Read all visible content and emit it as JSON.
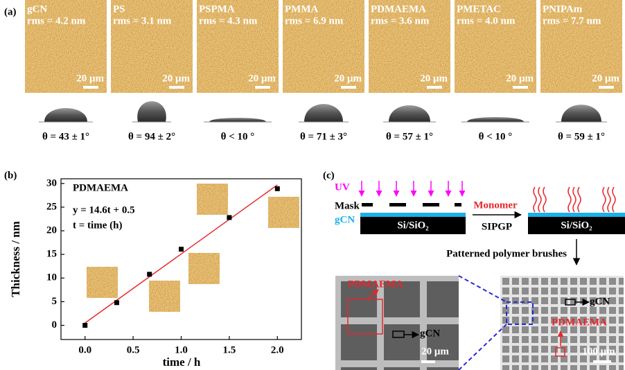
{
  "panel_labels": [
    "(a)",
    "(b)",
    "(c)"
  ],
  "panel_a": {
    "samples": [
      {
        "name": "gCN",
        "rms": "rms = 4.2 nm",
        "scale_bar": "20 μm",
        "contact_angle": "θ = 43 ± 1°"
      },
      {
        "name": "PS",
        "rms": "rms = 3.1 nm",
        "scale_bar": "20 μm",
        "contact_angle": "θ = 94 ± 2°"
      },
      {
        "name": "PSPMA",
        "rms": "rms = 4.3 nm",
        "scale_bar": "20 μm",
        "contact_angle": "θ < 10 °"
      },
      {
        "name": "PMMA",
        "rms": "rms = 6.9 nm",
        "scale_bar": "20 μm",
        "contact_angle": "θ = 71 ± 3°"
      },
      {
        "name": "PDMAEMA",
        "rms": "rms = 3.6 nm",
        "scale_bar": "20 μm",
        "contact_angle": "θ = 57 ± 1°"
      },
      {
        "name": "PMETAC",
        "rms": "rms = 4.0 nm",
        "scale_bar": "20 μm",
        "contact_angle": "θ < 10 °"
      },
      {
        "name": "PNIPAm",
        "rms": "rms = 7.7 nm",
        "scale_bar": "20 μm",
        "contact_angle": "θ = 59 ± 1°"
      }
    ]
  },
  "chart_data": {
    "type": "scatter",
    "x": [
      0,
      0.33,
      0.67,
      1.0,
      1.5,
      2.0
    ],
    "values": [
      0,
      4.8,
      10.8,
      16.1,
      22.8,
      28.9
    ],
    "color": "#000000",
    "fit_line": {
      "x": [
        0,
        2.0
      ],
      "values": [
        0.5,
        29.7
      ],
      "color": "#e8262a"
    },
    "xlim": [
      -0.25,
      2.25
    ],
    "ylim": [
      -3,
      31
    ],
    "xticks": [
      {
        "value": 0,
        "label": "0.0"
      },
      {
        "value": 0.5,
        "label": "0.5"
      },
      {
        "value": 1,
        "label": "1.0"
      },
      {
        "value": 1.5,
        "label": "1.5"
      },
      {
        "value": 2,
        "label": "2.0"
      }
    ],
    "yticks": [
      0,
      5,
      10,
      15,
      20,
      25,
      30
    ],
    "x_label": "time / h",
    "y_label": "Thickness / nm",
    "annotations": [
      "PDMAEMA",
      "y = 14.6t + 0.5",
      "t = time (h)"
    ]
  },
  "panel_c": {
    "uv": "UV",
    "mask": "Mask",
    "gcn": "gCN",
    "substrate": "Si/SiO₂",
    "monomer": "Monomer",
    "process": "SIPGP",
    "substrate_after": "Si/SiO₂",
    "caption": "Patterned polymer brushes",
    "sem_left": {
      "polymer": "PDMAEMA",
      "gcn": "gCN",
      "scale_bar": "20 μm"
    },
    "sem_right": {
      "gcn": "gCN",
      "polymer": "PDMAEMA",
      "scale_bar": "100 μm"
    }
  }
}
